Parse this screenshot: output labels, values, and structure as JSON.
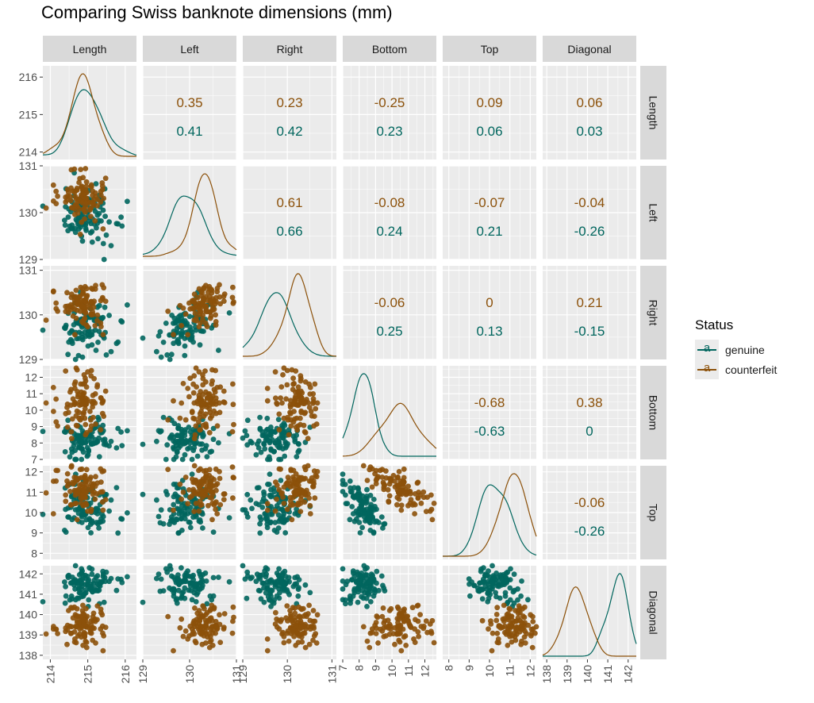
{
  "title": "Comparing Swiss banknote dimensions (mm)",
  "colors": {
    "genuine": "#01665e",
    "counterfeit": "#8c510a",
    "panel_bg": "#ebebeb",
    "strip_bg": "#d9d9d9",
    "grid": "#ffffff"
  },
  "legend": {
    "title": "Status",
    "items": [
      {
        "label": "genuine",
        "color": "#01665e",
        "icon": "line-point-a"
      },
      {
        "label": "counterfeit",
        "color": "#8c510a",
        "icon": "line-point-a"
      }
    ]
  },
  "chart_data": {
    "type": "scatter-matrix",
    "variables": [
      "Length",
      "Left",
      "Right",
      "Bottom",
      "Top",
      "Diagonal"
    ],
    "groups": [
      "genuine",
      "counterfeit"
    ],
    "ranges": {
      "Length": [
        213.8,
        216.3
      ],
      "Left": [
        129.0,
        131.0
      ],
      "Right": [
        129.0,
        131.1
      ],
      "Bottom": [
        7.0,
        12.7
      ],
      "Top": [
        7.7,
        12.3
      ],
      "Diagonal": [
        137.8,
        142.4
      ]
    },
    "y_ticks": {
      "Length": [
        "214",
        "215",
        "216"
      ],
      "Left": [
        "129",
        "130",
        "131"
      ],
      "Right": [
        "129",
        "130",
        "131"
      ],
      "Bottom": [
        "7",
        "8",
        "9",
        "10",
        "11",
        "12"
      ],
      "Top": [
        "8",
        "9",
        "10",
        "11",
        "12"
      ],
      "Diagonal": [
        "138",
        "139",
        "140",
        "141",
        "142"
      ]
    },
    "x_ticks": {
      "Length": [
        "214",
        "215",
        "216"
      ],
      "Left": [
        "129",
        "130",
        "131"
      ],
      "Right": [
        "129",
        "130",
        "131"
      ],
      "Bottom": [
        "7",
        "8",
        "9",
        "10",
        "11",
        "12"
      ],
      "Top": [
        "8",
        "9",
        "10",
        "11",
        "12"
      ],
      "Diagonal": [
        "138",
        "139",
        "140",
        "141",
        "142"
      ]
    },
    "correlations": {
      "Length-Left": {
        "counterfeit": "0.35",
        "genuine": "0.41"
      },
      "Length-Right": {
        "counterfeit": "0.23",
        "genuine": "0.42"
      },
      "Length-Bottom": {
        "counterfeit": "-0.25",
        "genuine": "0.23"
      },
      "Length-Top": {
        "counterfeit": "0.09",
        "genuine": "0.06"
      },
      "Length-Diagonal": {
        "counterfeit": "0.06",
        "genuine": "0.03"
      },
      "Left-Right": {
        "counterfeit": "0.61",
        "genuine": "0.66"
      },
      "Left-Bottom": {
        "counterfeit": "-0.08",
        "genuine": "0.24"
      },
      "Left-Top": {
        "counterfeit": "-0.07",
        "genuine": "0.21"
      },
      "Left-Diagonal": {
        "counterfeit": "-0.04",
        "genuine": "-0.26"
      },
      "Right-Bottom": {
        "counterfeit": "-0.06",
        "genuine": "0.25"
      },
      "Right-Top": {
        "counterfeit": "0",
        "genuine": "0.13"
      },
      "Right-Diagonal": {
        "counterfeit": "0.21",
        "genuine": "-0.15"
      },
      "Bottom-Top": {
        "counterfeit": "-0.68",
        "genuine": "-0.63"
      },
      "Bottom-Diagonal": {
        "counterfeit": "0.38",
        "genuine": "0"
      },
      "Top-Diagonal": {
        "counterfeit": "-0.06",
        "genuine": "-0.26"
      }
    },
    "group_summary": {
      "genuine": {
        "Length": {
          "mean": 215.0,
          "sd": 0.38
        },
        "Left": {
          "mean": 129.95,
          "sd": 0.3
        },
        "Right": {
          "mean": 129.72,
          "sd": 0.32
        },
        "Bottom": {
          "mean": 8.3,
          "sd": 0.62
        },
        "Top": {
          "mean": 10.16,
          "sd": 0.6
        },
        "Diagonal": {
          "mean": 141.5,
          "sd": 0.42
        }
      },
      "counterfeit": {
        "Length": {
          "mean": 214.82,
          "sd": 0.33
        },
        "Left": {
          "mean": 130.3,
          "sd": 0.24
        },
        "Right": {
          "mean": 130.19,
          "sd": 0.26
        },
        "Bottom": {
          "mean": 10.53,
          "sd": 0.95
        },
        "Top": {
          "mean": 11.13,
          "sd": 0.55
        },
        "Diagonal": {
          "mean": 139.45,
          "sd": 0.56
        }
      }
    },
    "n_per_group": 100
  }
}
